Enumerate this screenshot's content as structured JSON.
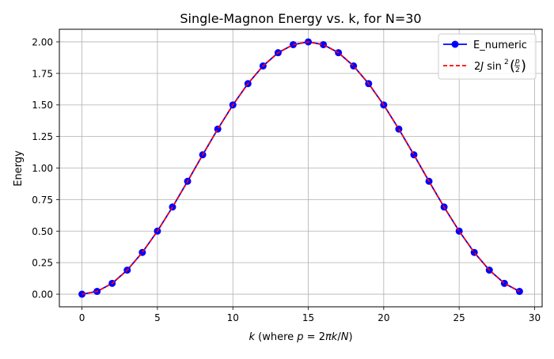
{
  "chart_data": {
    "type": "line",
    "title": "Single-Magnon Energy vs. k, for N=30",
    "xlabel": {
      "k": "k",
      "where": " (where ",
      "p": "p",
      "eq": " = 2",
      "pi": "π",
      "k2": "k",
      "slash": "/",
      "N": "N",
      "close": ")"
    },
    "ylabel": "Energy",
    "xlim": [
      -1.5,
      30.5
    ],
    "ylim": [
      -0.1,
      2.1
    ],
    "xticks": [
      0,
      5,
      10,
      15,
      20,
      25,
      30
    ],
    "yticks": [
      0.0,
      0.25,
      0.5,
      0.75,
      1.0,
      1.25,
      1.5,
      1.75,
      2.0
    ],
    "xtick_labels": [
      "0",
      "5",
      "10",
      "15",
      "20",
      "25",
      "30"
    ],
    "ytick_labels": [
      "0.00",
      "0.25",
      "0.50",
      "0.75",
      "1.00",
      "1.25",
      "1.50",
      "1.75",
      "2.00"
    ],
    "grid": true,
    "legend_position": "top-right",
    "x": [
      0,
      1,
      2,
      3,
      4,
      5,
      6,
      7,
      8,
      9,
      10,
      11,
      12,
      13,
      14,
      15,
      16,
      17,
      18,
      19,
      20,
      21,
      22,
      23,
      24,
      25,
      26,
      27,
      28,
      29
    ],
    "series": [
      {
        "name": "E_numeric",
        "color": "#0000ff",
        "marker": "circle",
        "style": "solid",
        "values": [
          0.0,
          0.022,
          0.086,
          0.191,
          0.331,
          0.5,
          0.691,
          0.895,
          1.105,
          1.309,
          1.5,
          1.669,
          1.809,
          1.914,
          1.978,
          2.0,
          1.978,
          1.914,
          1.809,
          1.669,
          1.5,
          1.309,
          1.105,
          0.895,
          0.691,
          0.5,
          0.331,
          0.191,
          0.086,
          0.022
        ]
      },
      {
        "name": "2J sin²(p/2)",
        "color": "#ff0000",
        "marker": "none",
        "style": "dashed",
        "values": [
          0.0,
          0.022,
          0.086,
          0.191,
          0.331,
          0.5,
          0.691,
          0.895,
          1.105,
          1.309,
          1.5,
          1.669,
          1.809,
          1.914,
          1.978,
          2.0,
          1.978,
          1.914,
          1.809,
          1.669,
          1.5,
          1.309,
          1.105,
          0.895,
          0.691,
          0.5,
          0.331,
          0.191,
          0.086,
          0.022
        ]
      }
    ],
    "legend": {
      "numeric_label": "E_numeric",
      "analytic": {
        "coef": "2",
        "J": "J",
        "sin": " sin",
        "sq": "2",
        "p": "p",
        "two": "2"
      }
    }
  }
}
